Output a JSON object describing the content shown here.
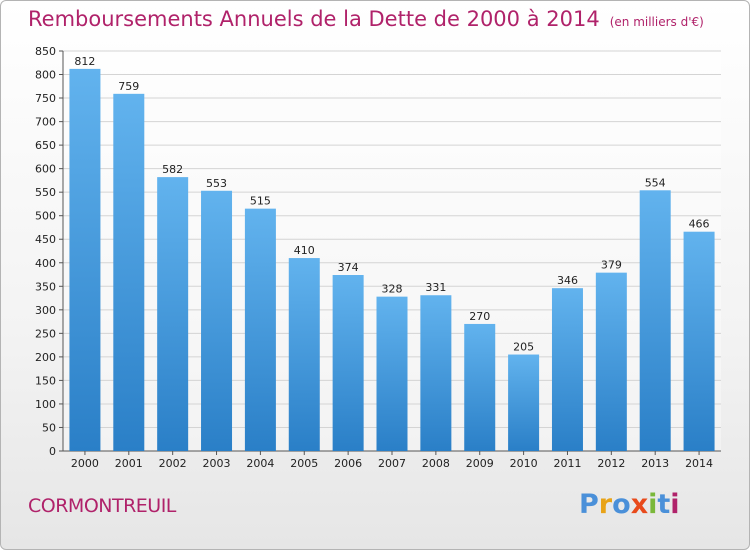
{
  "chart_data": {
    "type": "bar",
    "title": "Remboursements Annuels de la Dette de 2000 à 2014",
    "subtitle": "(en milliers d'€)",
    "xlabel": "",
    "ylabel": "",
    "ylim": [
      0,
      850
    ],
    "ytick_step": 50,
    "grid": true,
    "categories": [
      "2000",
      "2001",
      "2002",
      "2003",
      "2004",
      "2005",
      "2006",
      "2007",
      "2008",
      "2009",
      "2010",
      "2011",
      "2012",
      "2013",
      "2014"
    ],
    "values": [
      812,
      759,
      582,
      553,
      515,
      410,
      374,
      328,
      331,
      270,
      205,
      346,
      379,
      554,
      466
    ],
    "bar_color_top": "#62b3ee",
    "bar_color_bottom": "#2a7fc7"
  },
  "city": "CORMONTREUIL",
  "logo": {
    "letters": [
      "P",
      "r",
      "o",
      "x",
      "i",
      "t",
      "i"
    ],
    "colors": [
      "#4a90d9",
      "#e8a317",
      "#4a90d9",
      "#e84a1b",
      "#7ab83a",
      "#4a90d9",
      "#b0226a"
    ]
  },
  "colors": {
    "title": "#b0226a",
    "grid": "#d4d4d4",
    "axis": "#555555"
  }
}
